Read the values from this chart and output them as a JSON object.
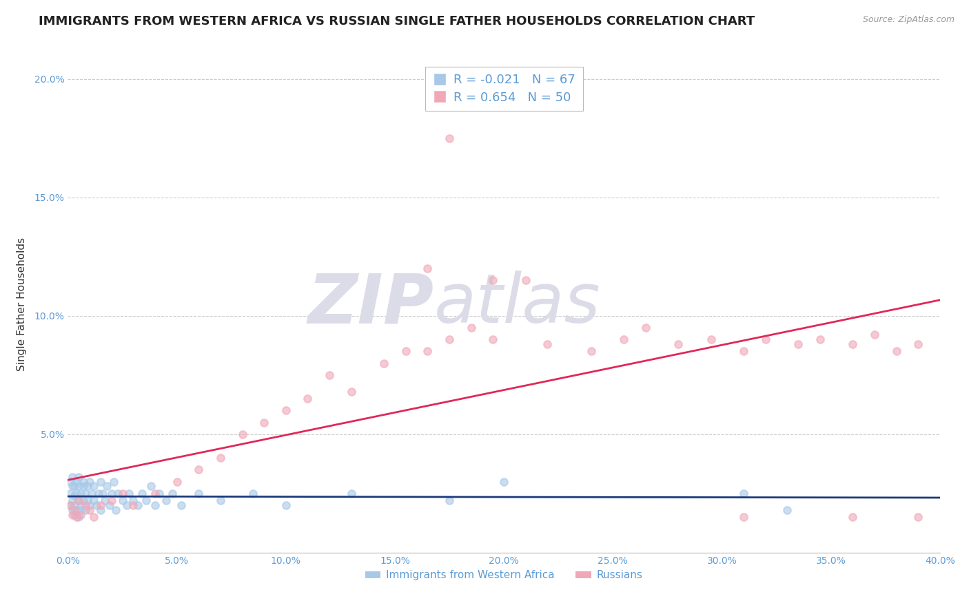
{
  "title": "IMMIGRANTS FROM WESTERN AFRICA VS RUSSIAN SINGLE FATHER HOUSEHOLDS CORRELATION CHART",
  "source": "Source: ZipAtlas.com",
  "ylabel": "Single Father Households",
  "legend_labels": [
    "Immigrants from Western Africa",
    "Russians"
  ],
  "blue_color": "#A8C8E8",
  "pink_color": "#F0A8B8",
  "blue_line_color": "#1A3A7A",
  "pink_line_color": "#E02858",
  "R_blue": -0.021,
  "N_blue": 67,
  "R_pink": 0.654,
  "N_pink": 50,
  "xlim": [
    0.0,
    0.4
  ],
  "ylim": [
    0.0,
    0.21
  ],
  "xticks": [
    0.0,
    0.05,
    0.1,
    0.15,
    0.2,
    0.25,
    0.3,
    0.35,
    0.4
  ],
  "yticks": [
    0.0,
    0.05,
    0.1,
    0.15,
    0.2
  ],
  "ytick_labels": [
    "",
    "5.0%",
    "10.0%",
    "15.0%",
    "20.0%"
  ],
  "xtick_labels": [
    "0.0%",
    "5.0%",
    "10.0%",
    "15.0%",
    "20.0%",
    "25.0%",
    "30.0%",
    "35.0%",
    "40.0%"
  ],
  "watermark_zip": "ZIP",
  "watermark_atlas": "atlas",
  "title_fontsize": 13,
  "axis_tick_fontsize": 10,
  "legend_fontsize": 13,
  "ylabel_fontsize": 11,
  "blue_scatter_x": [
    0.001,
    0.001,
    0.001,
    0.002,
    0.002,
    0.002,
    0.002,
    0.003,
    0.003,
    0.003,
    0.003,
    0.004,
    0.004,
    0.004,
    0.005,
    0.005,
    0.005,
    0.005,
    0.006,
    0.006,
    0.006,
    0.007,
    0.007,
    0.007,
    0.008,
    0.008,
    0.009,
    0.009,
    0.01,
    0.01,
    0.011,
    0.012,
    0.012,
    0.013,
    0.014,
    0.015,
    0.015,
    0.016,
    0.017,
    0.018,
    0.019,
    0.02,
    0.021,
    0.022,
    0.023,
    0.025,
    0.027,
    0.028,
    0.03,
    0.032,
    0.034,
    0.036,
    0.038,
    0.04,
    0.042,
    0.045,
    0.048,
    0.052,
    0.06,
    0.07,
    0.085,
    0.1,
    0.13,
    0.175,
    0.2,
    0.31,
    0.33
  ],
  "blue_scatter_y": [
    0.03,
    0.025,
    0.02,
    0.028,
    0.022,
    0.018,
    0.032,
    0.024,
    0.02,
    0.028,
    0.016,
    0.025,
    0.03,
    0.018,
    0.022,
    0.028,
    0.015,
    0.032,
    0.02,
    0.025,
    0.018,
    0.028,
    0.022,
    0.03,
    0.018,
    0.025,
    0.022,
    0.028,
    0.02,
    0.03,
    0.025,
    0.022,
    0.028,
    0.02,
    0.025,
    0.03,
    0.018,
    0.025,
    0.022,
    0.028,
    0.02,
    0.025,
    0.03,
    0.018,
    0.025,
    0.022,
    0.02,
    0.025,
    0.022,
    0.02,
    0.025,
    0.022,
    0.028,
    0.02,
    0.025,
    0.022,
    0.025,
    0.02,
    0.025,
    0.022,
    0.025,
    0.02,
    0.025,
    0.022,
    0.03,
    0.025,
    0.018
  ],
  "pink_scatter_x": [
    0.001,
    0.002,
    0.003,
    0.004,
    0.005,
    0.006,
    0.008,
    0.01,
    0.012,
    0.015,
    0.02,
    0.025,
    0.03,
    0.04,
    0.05,
    0.06,
    0.07,
    0.08,
    0.09,
    0.1,
    0.11,
    0.12,
    0.13,
    0.145,
    0.155,
    0.165,
    0.175,
    0.185,
    0.195,
    0.21,
    0.22,
    0.24,
    0.255,
    0.265,
    0.28,
    0.295,
    0.31,
    0.32,
    0.335,
    0.345,
    0.36,
    0.37,
    0.38,
    0.39,
    0.165,
    0.175,
    0.195,
    0.31,
    0.36,
    0.39
  ],
  "pink_scatter_y": [
    0.02,
    0.016,
    0.018,
    0.015,
    0.022,
    0.016,
    0.02,
    0.018,
    0.015,
    0.02,
    0.022,
    0.025,
    0.02,
    0.025,
    0.03,
    0.035,
    0.04,
    0.05,
    0.055,
    0.06,
    0.065,
    0.075,
    0.068,
    0.08,
    0.085,
    0.085,
    0.09,
    0.095,
    0.09,
    0.115,
    0.088,
    0.085,
    0.09,
    0.095,
    0.088,
    0.09,
    0.085,
    0.09,
    0.088,
    0.09,
    0.088,
    0.092,
    0.085,
    0.088,
    0.12,
    0.175,
    0.115,
    0.015,
    0.015,
    0.015
  ]
}
